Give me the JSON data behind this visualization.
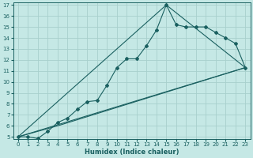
{
  "xlabel": "Humidex (Indice chaleur)",
  "xlim": [
    -0.5,
    23.5
  ],
  "ylim": [
    4.8,
    17.2
  ],
  "xticks": [
    0,
    1,
    2,
    3,
    4,
    5,
    6,
    7,
    8,
    9,
    10,
    11,
    12,
    13,
    14,
    15,
    16,
    17,
    18,
    19,
    20,
    21,
    22,
    23
  ],
  "yticks": [
    5,
    6,
    7,
    8,
    9,
    10,
    11,
    12,
    13,
    14,
    15,
    16,
    17
  ],
  "bg_color": "#c5e8e5",
  "line_color": "#1a6060",
  "grid_color": "#a8d0cc",
  "curve1_x": [
    0,
    1,
    2,
    3,
    4,
    5,
    6,
    7,
    8,
    9,
    10,
    11,
    12,
    13,
    14,
    15,
    16,
    17,
    18,
    19,
    20,
    21,
    22,
    23
  ],
  "curve1_y": [
    5.0,
    5.0,
    4.85,
    5.5,
    6.3,
    6.7,
    7.5,
    8.2,
    8.3,
    9.7,
    11.3,
    12.1,
    12.1,
    13.3,
    14.7,
    17.0,
    15.2,
    15.0,
    15.0,
    15.0,
    14.5,
    14.0,
    13.5,
    11.3
  ],
  "line2_x": [
    0,
    23
  ],
  "line2_y": [
    5.0,
    11.3
  ],
  "line3_x": [
    0,
    4,
    23
  ],
  "line3_y": [
    5.0,
    6.0,
    11.3
  ],
  "line4_x": [
    0,
    15,
    23
  ],
  "line4_y": [
    5.0,
    17.0,
    11.3
  ]
}
